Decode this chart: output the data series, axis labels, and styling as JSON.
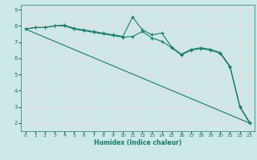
{
  "xlabel": "Humidex (Indice chaleur)",
  "background_color": "#cce8e8",
  "grid_color": "#f0d8d8",
  "line_color": "#1a7a6a",
  "xlim": [
    -0.5,
    23.5
  ],
  "ylim": [
    1.5,
    9.3
  ],
  "xticks": [
    0,
    1,
    2,
    3,
    4,
    5,
    6,
    7,
    8,
    9,
    10,
    11,
    12,
    13,
    14,
    15,
    16,
    17,
    18,
    19,
    20,
    21,
    22,
    23
  ],
  "yticks": [
    2,
    3,
    4,
    5,
    6,
    7,
    8,
    9
  ],
  "series1_x": [
    0,
    1,
    2,
    3,
    4,
    5,
    6,
    7,
    8,
    9,
    10,
    11,
    12,
    13,
    14,
    15,
    16,
    17,
    18,
    19,
    20,
    21,
    22,
    23
  ],
  "series1_y": [
    7.8,
    7.9,
    7.9,
    8.0,
    8.05,
    7.85,
    7.75,
    7.65,
    7.55,
    7.45,
    7.35,
    8.55,
    7.75,
    7.45,
    7.55,
    6.7,
    6.25,
    6.55,
    6.65,
    6.55,
    6.35,
    5.5,
    3.05,
    2.05
  ],
  "series2_x": [
    0,
    1,
    2,
    3,
    4,
    5,
    6,
    7,
    8,
    9,
    10,
    11,
    12,
    13,
    14,
    15,
    16,
    17,
    18,
    19,
    20,
    21,
    22,
    23
  ],
  "series2_y": [
    7.8,
    7.9,
    7.9,
    8.0,
    8.0,
    7.8,
    7.7,
    7.6,
    7.5,
    7.4,
    7.3,
    7.35,
    7.65,
    7.25,
    7.05,
    6.65,
    6.2,
    6.5,
    6.6,
    6.5,
    6.3,
    5.45,
    3.0,
    2.0
  ],
  "series3_x": [
    0,
    23
  ],
  "series3_y": [
    7.8,
    2.0
  ]
}
